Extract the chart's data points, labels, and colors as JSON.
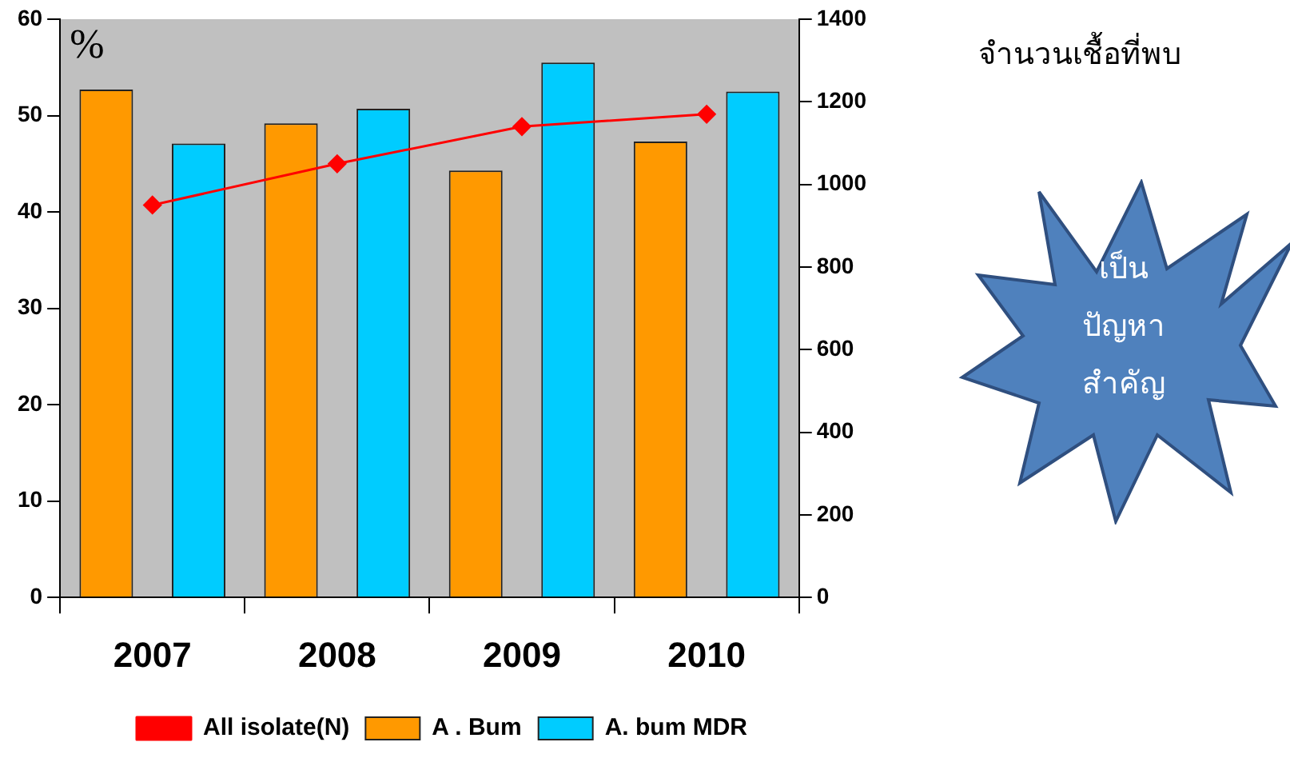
{
  "chart_data": {
    "type": "bar",
    "categories": [
      "2007",
      "2008",
      "2009",
      "2010"
    ],
    "ylabel": "%",
    "y2label": "จำนวนเชื้อที่พบ",
    "ylim": [
      0,
      60
    ],
    "yticks": [
      0,
      10,
      20,
      30,
      40,
      50,
      60
    ],
    "y2lim": [
      0,
      1400
    ],
    "y2ticks": [
      0,
      200,
      400,
      600,
      800,
      1000,
      1200,
      1400
    ],
    "grid": false,
    "legend": "bottom",
    "marker": "diamond",
    "annotations": [
      "เป็น\nปัญหา\nสำคัญ"
    ],
    "series": [
      {
        "name": "A . Bum",
        "color": "#ff9900",
        "values": [
          52.7,
          49.2,
          44.3,
          47.3
        ]
      },
      {
        "name": "A. bum MDR",
        "color": "#00ccff",
        "values": [
          47.1,
          50.7,
          55.5,
          52.5
        ]
      },
      {
        "name": "All isolate(N)",
        "type": "line",
        "axis": "y2",
        "color": "#ff0000",
        "values": [
          950,
          1050,
          1140,
          1170
        ]
      }
    ]
  }
}
